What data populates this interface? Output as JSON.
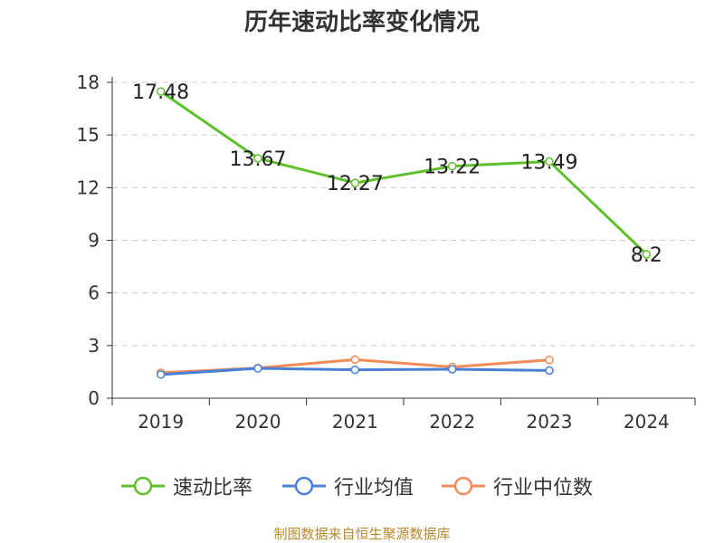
{
  "title": "历年速动比率变化情况",
  "footer": "制图数据来自恒生聚源数据库",
  "chart_data": {
    "type": "line",
    "title": "历年速动比率变化情况",
    "categories": [
      "2019",
      "2020",
      "2021",
      "2022",
      "2023",
      "2024"
    ],
    "ylim": [
      0,
      18
    ],
    "yticks": [
      0,
      3,
      6,
      9,
      12,
      15,
      18
    ],
    "grid": true,
    "legend_position": "bottom",
    "series": [
      {
        "name": "速动比率",
        "color": "#5ec12b",
        "values": [
          17.48,
          13.67,
          12.27,
          13.22,
          13.49,
          8.2
        ],
        "labels": [
          "17.48",
          "13.67",
          "12.27",
          "13.22",
          "13.49",
          "8.2"
        ]
      },
      {
        "name": "行业均值",
        "color": "#4a7fd8",
        "values": [
          1.35,
          1.7,
          1.62,
          1.65,
          1.58,
          null
        ]
      },
      {
        "name": "行业中位数",
        "color": "#f28b57",
        "values": [
          1.45,
          1.72,
          2.2,
          1.78,
          2.18,
          null
        ]
      }
    ]
  }
}
